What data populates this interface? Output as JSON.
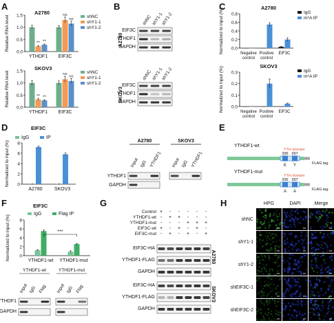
{
  "panels": [
    "A",
    "B",
    "C",
    "D",
    "E",
    "F",
    "G",
    "H"
  ],
  "colors": {
    "shNC": "#70ad8e",
    "shY1_1": "#f39a55",
    "shY1_2": "#5b8fc9",
    "IgG_black": "#1a1a1a",
    "m6A_blue": "#4a90d9",
    "IgG_green": "#79c39a",
    "IP_blue": "#4a90d9",
    "FlagIP_green": "#3fae64",
    "gene_bar": "#7fc89a",
    "domain_blue": "#3b7fcf",
    "flag_gray": "#a3a3a3",
    "yth_red": "#e0553a",
    "hpg_green": "#2f8f2f",
    "dapi_blue": "#2236b5"
  },
  "chart_data": [
    {
      "id": "A-A2780",
      "type": "bar",
      "title": "A2780",
      "ylabel": "Relative RNA level",
      "ylim": [
        0,
        1.5
      ],
      "yticks": [
        "0.0",
        "0.5",
        "1.0",
        "1.5"
      ],
      "categories": [
        "YTHDF1",
        "EIF3C"
      ],
      "series": [
        {
          "name": "shNC",
          "values": [
            1.0,
            1.0
          ],
          "errors": [
            0.08,
            0.07
          ]
        },
        {
          "name": "shY1-1",
          "values": [
            0.22,
            1.3
          ],
          "errors": [
            0.03,
            0.12
          ]
        },
        {
          "name": "shY1-2",
          "values": [
            0.28,
            1.15
          ],
          "errors": [
            0.03,
            0.1
          ]
        }
      ],
      "annotations": [
        [
          "",
          "**",
          "**"
        ],
        [
          "",
          "NS",
          "NS"
        ]
      ],
      "legend": [
        "shNC",
        "shY1-1",
        "shY1-2"
      ]
    },
    {
      "id": "A-SKOV3",
      "type": "bar",
      "title": "SKOV3",
      "ylabel": "Relative RNA level",
      "ylim": [
        0,
        1.5
      ],
      "yticks": [
        "0.0",
        "0.5",
        "1.0",
        "1.5"
      ],
      "categories": [
        "YTHDF1",
        "EIF3C"
      ],
      "series": [
        {
          "name": "shNC",
          "values": [
            1.0,
            1.0
          ],
          "errors": [
            0.1,
            0.08
          ]
        },
        {
          "name": "shY1-1",
          "values": [
            0.32,
            1.15
          ],
          "errors": [
            0.04,
            0.12
          ]
        },
        {
          "name": "shY1-2",
          "values": [
            0.28,
            1.08
          ],
          "errors": [
            0.03,
            0.1
          ]
        }
      ],
      "annotations": [
        [
          "",
          "**",
          "**"
        ],
        [
          "",
          "NS",
          "NS"
        ]
      ],
      "legend": [
        "shNC",
        "shY1-1",
        "shY1-2"
      ]
    },
    {
      "id": "C-A2780",
      "type": "bar",
      "title": "A2780",
      "ylabel": "Normalized to input (%)",
      "ylim": [
        0,
        0.8
      ],
      "yticks": [
        "0.0",
        "0.2",
        "0.4",
        "0.6",
        "0.8"
      ],
      "categories": [
        "Negative control",
        "Positive control",
        "EIF3C"
      ],
      "series": [
        {
          "name": "IgG",
          "values": [
            0.0,
            0.0,
            0.03
          ],
          "errors": [
            0.0,
            0.0,
            0.01
          ]
        },
        {
          "name": "m⁶A IP",
          "values": [
            0.0,
            0.55,
            0.2
          ],
          "errors": [
            0.0,
            0.04,
            0.04
          ]
        }
      ],
      "legend": [
        "IgG",
        "m⁶A IP"
      ]
    },
    {
      "id": "C-SKOV3",
      "type": "bar",
      "title": "SKOV3",
      "ylabel": "Normalized to input (%)",
      "ylim": [
        0,
        0.3
      ],
      "yticks": [
        "0.0",
        "0.1",
        "0.2",
        "0.3"
      ],
      "categories": [
        "Negative control",
        "Positive control",
        "EIF3C"
      ],
      "series": [
        {
          "name": "IgG",
          "values": [
            0.0,
            0.0,
            0.0
          ],
          "errors": [
            0.0,
            0.0,
            0.0
          ]
        },
        {
          "name": "m⁶A IP",
          "values": [
            0.0,
            0.2,
            0.025
          ],
          "errors": [
            0.0,
            0.04,
            0.005
          ]
        }
      ],
      "legend": [
        "IgG",
        "m⁶A IP"
      ]
    },
    {
      "id": "D",
      "type": "bar",
      "title": "EIF3C",
      "ylabel": "Normalized to input (%)",
      "ylim": [
        0,
        8
      ],
      "yticks": [
        "0",
        "2",
        "4",
        "6",
        "8"
      ],
      "categories": [
        "A2780",
        "SKOV3"
      ],
      "series": [
        {
          "name": "IgG",
          "values": [
            0.05,
            0.05
          ],
          "errors": [
            0.02,
            0.02
          ]
        },
        {
          "name": "IP",
          "values": [
            7.2,
            5.8
          ],
          "errors": [
            0.2,
            0.25
          ]
        }
      ],
      "legend": [
        "IgG",
        "IP"
      ]
    },
    {
      "id": "F",
      "type": "bar",
      "title": "EIF3C",
      "ylabel": "Normalized to input (%)",
      "ylim": [
        0,
        8
      ],
      "yticks": [
        "0",
        "2",
        "4",
        "6",
        "8"
      ],
      "categories": [
        "YTHDF1-wt",
        "YTHDF1-mut"
      ],
      "series": [
        {
          "name": "IgG",
          "values": [
            1.2,
            0.9
          ],
          "errors": [
            0.15,
            0.2
          ]
        },
        {
          "name": "Flag IP",
          "values": [
            5.5,
            2.6
          ],
          "errors": [
            0.25,
            0.1
          ]
        }
      ],
      "significance": "***",
      "legend": [
        "IgG",
        "Flag IP"
      ]
    }
  ],
  "panelB": {
    "lanes": [
      "shNC",
      "shY1-1",
      "shY1-2"
    ],
    "blocks": [
      {
        "cell": "A2780",
        "rows": [
          "EIF3C",
          "YTHDF1",
          "GAPDH"
        ]
      },
      {
        "cell": "SKOV3",
        "rows": [
          "EIF3C",
          "YTHDF1",
          "GAPDH"
        ]
      }
    ]
  },
  "panelD_blots": [
    {
      "cell": "A2780",
      "lanes": [
        "Input",
        "IgG",
        "YTHDF1"
      ],
      "rows": [
        "YTHDF1",
        "GAPDH"
      ]
    },
    {
      "cell": "SKOV3",
      "lanes": [
        "Input",
        "IgG",
        "YTHDF1"
      ],
      "rows": []
    }
  ],
  "panelE": {
    "constructs": [
      {
        "name": "YTHDF1-wt",
        "domain_label": "YTH domain",
        "pos": [
          "395",
          "397"
        ],
        "res": [
          "K",
          "Y"
        ],
        "tag": "FLAG tag"
      },
      {
        "name": "YTHDF1-mut",
        "domain_label": "YTH domain",
        "pos": [
          "395",
          "397"
        ],
        "res": [
          "A",
          "A"
        ],
        "tag": "FLAG tag"
      }
    ]
  },
  "panelF_blot": {
    "groups": [
      "YTHDF1-wt",
      "YTHDF1-mut"
    ],
    "lanes": [
      "Input",
      "IgG",
      "Flag",
      "Input",
      "IgG",
      "Flag"
    ],
    "rows": [
      "YTHDF1",
      "GAPDH"
    ]
  },
  "panelG": {
    "conditions": [
      {
        "label": "Control",
        "marks": [
          "+",
          "-",
          "-",
          "-",
          "-",
          "-"
        ]
      },
      {
        "label": "YTHDF1-wt",
        "marks": [
          "-",
          "+",
          "+",
          "-",
          "-",
          "-"
        ]
      },
      {
        "label": "YTHDF1-mut",
        "marks": [
          "-",
          "-",
          "-",
          "+",
          "+",
          "+"
        ]
      },
      {
        "label": "EIF3C-wt",
        "marks": [
          "+",
          "-",
          "+",
          "-",
          "+",
          "-"
        ]
      },
      {
        "label": "EIF3C-mut",
        "marks": [
          "-",
          "+",
          "-",
          "+",
          "-",
          "+"
        ]
      }
    ],
    "blocks": [
      {
        "cell": "A2780",
        "rows": [
          "EIF3C-HA",
          "YTHDF1-FLAG",
          "GAPDH"
        ]
      },
      {
        "cell": "SKOV3",
        "rows": [
          "EIF3C-HA",
          "YTHDF1-FLAG",
          "GAPDH"
        ]
      }
    ]
  },
  "panelH": {
    "columns": [
      "HPG",
      "DAPI",
      "Merge"
    ],
    "rows": [
      "shNC",
      "shY1-1",
      "shY1-2",
      "shEIF3C-1",
      "shEIF3C-2"
    ],
    "hpg_intensity": [
      0.9,
      0.35,
      0.4,
      0.3,
      0.3
    ]
  }
}
